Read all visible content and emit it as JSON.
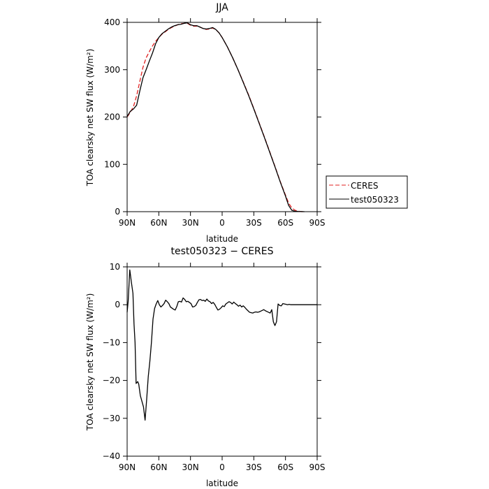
{
  "chart_data": [
    {
      "type": "line",
      "title": "JJA",
      "xlabel": "latitude",
      "ylabel": "TOA clearsky net SW flux (W/m²)",
      "xlim": [
        90,
        -90
      ],
      "ylim": [
        0,
        400
      ],
      "xticks": [
        90,
        60,
        30,
        0,
        -30,
        -60,
        -90
      ],
      "xtick_labels": [
        "90N",
        "60N",
        "30N",
        "0",
        "30S",
        "60S",
        "90S"
      ],
      "yticks": [
        0,
        100,
        200,
        300,
        400
      ],
      "ytick_labels": [
        "0",
        "100",
        "200",
        "300",
        "400"
      ],
      "legend_position": "right",
      "series": [
        {
          "name": "CERES",
          "color": "#e02020",
          "dash": "dashed",
          "x": [
            90,
            87,
            84,
            81,
            78,
            75,
            72,
            69,
            66,
            63,
            60,
            57,
            54,
            51,
            48,
            45,
            42,
            39,
            36,
            33,
            30,
            27,
            24,
            21,
            18,
            15,
            12,
            9,
            6,
            3,
            0,
            -5,
            -10,
            -15,
            -20,
            -25,
            -30,
            -35,
            -40,
            -45,
            -50,
            -55,
            -60,
            -63,
            -66,
            -69,
            -72,
            -75,
            -78
          ],
          "y": [
            200,
            210,
            222,
            245,
            275,
            305,
            325,
            338,
            350,
            360,
            368,
            375,
            380,
            385,
            389,
            392,
            395,
            397,
            398,
            398,
            394,
            392,
            392,
            390,
            387,
            385,
            386,
            388,
            385,
            378,
            368,
            348,
            325,
            300,
            274,
            247,
            218,
            188,
            158,
            127,
            96,
            64,
            35,
            18,
            8,
            3,
            1,
            0,
            0
          ]
        },
        {
          "name": "test050323",
          "color": "#000000",
          "dash": "solid",
          "x": [
            90,
            87,
            84,
            81,
            78,
            75,
            72,
            69,
            66,
            63,
            60,
            57,
            54,
            51,
            48,
            45,
            42,
            39,
            36,
            33,
            30,
            27,
            24,
            21,
            18,
            15,
            12,
            9,
            6,
            3,
            0,
            -5,
            -10,
            -15,
            -20,
            -25,
            -30,
            -35,
            -40,
            -45,
            -50,
            -55,
            -60,
            -63,
            -66,
            -69,
            -72,
            -75,
            -78
          ],
          "y": [
            201,
            212,
            217,
            225,
            255,
            283,
            300,
            318,
            335,
            355,
            368,
            376,
            381,
            386,
            390,
            393,
            395,
            396,
            398,
            399,
            395,
            393,
            393,
            390,
            387,
            386,
            387,
            389,
            385,
            378,
            368,
            348,
            325,
            300,
            273,
            246,
            217,
            187,
            157,
            126,
            95,
            63,
            33,
            13,
            3,
            1,
            0.5,
            0.3,
            0
          ]
        }
      ]
    },
    {
      "type": "line",
      "title": "test050323 − CERES",
      "xlabel": "latitude",
      "ylabel": "TOA clearsky net SW flux (W/m²)",
      "xlim": [
        90,
        -90
      ],
      "ylim": [
        -40,
        10
      ],
      "xticks": [
        90,
        60,
        30,
        0,
        -30,
        -60,
        -90
      ],
      "xtick_labels": [
        "90N",
        "60N",
        "30N",
        "0",
        "30S",
        "60S",
        "90S"
      ],
      "yticks": [
        -40,
        -30,
        -20,
        -10,
        0,
        10
      ],
      "ytick_labels": [
        "−40",
        "−30",
        "−20",
        "−10",
        "0",
        "10"
      ],
      "series": [
        {
          "color": "#000000",
          "dash": "solid",
          "x": [
            90,
            89,
            87.5,
            86,
            84.5,
            83.5,
            82.5,
            81.5,
            80,
            79,
            77.5,
            76,
            74.5,
            73,
            71.5,
            70,
            68.5,
            67,
            65.5,
            64,
            62.5,
            61,
            59.5,
            58,
            56.5,
            55,
            53.5,
            52,
            50.5,
            49,
            47.5,
            46,
            44.5,
            43,
            41.5,
            40,
            38.5,
            37,
            35.5,
            34,
            32.5,
            31,
            29.5,
            28,
            26.5,
            25,
            23.5,
            22,
            20.5,
            19,
            17.5,
            16,
            14.5,
            13,
            11.5,
            10,
            8.5,
            7,
            5.5,
            4,
            2.5,
            1,
            -0.5,
            -2,
            -3.5,
            -5,
            -6.5,
            -8,
            -9.5,
            -11,
            -12.5,
            -14,
            -15.5,
            -17,
            -18.5,
            -20,
            -21.5,
            -23,
            -24.5,
            -26,
            -27.5,
            -29,
            -30.5,
            -32,
            -33.5,
            -35,
            -36.5,
            -38,
            -39.5,
            -41,
            -42.5,
            -44,
            -45.5,
            -47,
            -48.5,
            -50,
            -51.5,
            -53,
            -54.5,
            -56,
            -57.5,
            -59,
            -60.5,
            -62,
            -63.5,
            -65,
            -66.5,
            -68,
            -69.5,
            -71,
            -72.5,
            -74,
            -75.5,
            -77,
            -78.5,
            -80,
            -81.5,
            -83,
            -84.5,
            -86,
            -87.5,
            -89,
            -90
          ],
          "y": [
            -2,
            1,
            9.2,
            6,
            3,
            -5,
            -10,
            -20.8,
            -20.3,
            -21,
            -24,
            -25.5,
            -27,
            -30.5,
            -25,
            -19,
            -15,
            -10,
            -3.8,
            -1,
            0.2,
            1.1,
            0,
            -0.6,
            -0.2,
            0.3,
            1.2,
            0.8,
            0.3,
            -0.6,
            -0.9,
            -1.2,
            -1.4,
            -0.5,
            0.8,
            0.9,
            0.7,
            1.8,
            1.4,
            0.8,
            0.9,
            0.6,
            0.3,
            -0.6,
            -0.5,
            -0.2,
            0.6,
            1.3,
            1.4,
            1.1,
            1.2,
            0.9,
            1.5,
            1.0,
            0.8,
            0.3,
            0.6,
            0.1,
            -0.7,
            -1.4,
            -1.2,
            -0.8,
            -0.3,
            -0.5,
            0.2,
            0.5,
            0.8,
            0.6,
            0.2,
            0.7,
            0.3,
            0.0,
            -0.4,
            -0.1,
            -0.6,
            -0.3,
            -0.7,
            -1.2,
            -1.6,
            -2.0,
            -2.1,
            -2.2,
            -2.0,
            -1.9,
            -2.0,
            -1.9,
            -1.7,
            -1.5,
            -1.3,
            -1.6,
            -1.8,
            -2.0,
            -2.2,
            -1.3,
            -4.5,
            -5.5,
            -4.5,
            0.2,
            -0.2,
            -0.3,
            0.3,
            0.2,
            0.1,
            0.0,
            0.1,
            0.0,
            0.0,
            0.0,
            0.0,
            0.0,
            0.0,
            0.0,
            0.0,
            0.0,
            0.0,
            0.0,
            0.0,
            0.0,
            0.0,
            0.0,
            0.0,
            0.0,
            0.0
          ]
        }
      ]
    }
  ]
}
